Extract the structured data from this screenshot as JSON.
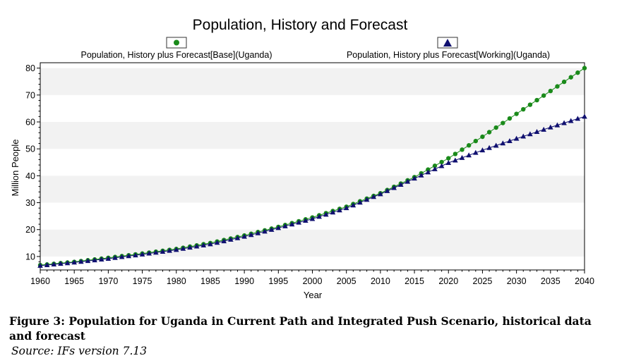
{
  "chart_data": {
    "type": "line",
    "title": "Population, History and Forecast",
    "xlabel": "Year",
    "ylabel": "Million People",
    "xlim": [
      1960,
      2040
    ],
    "ylim": [
      5,
      82
    ],
    "x_ticks": [
      "1960",
      "1965",
      "1970",
      "1975",
      "1980",
      "1985",
      "1990",
      "1995",
      "2000",
      "2005",
      "2010",
      "2015",
      "2020",
      "2025",
      "2030",
      "2035",
      "2040"
    ],
    "y_ticks": [
      "10",
      "20",
      "30",
      "40",
      "50",
      "60",
      "70",
      "80"
    ],
    "legend_position": "top",
    "series": [
      {
        "name": "Population, History plus Forecast[Base](Uganda)",
        "marker": "circle",
        "color": "#1a8a1a",
        "x": [
          1960,
          1965,
          1970,
          1975,
          1980,
          1985,
          1990,
          1995,
          2000,
          2005,
          2010,
          2015,
          2020,
          2025,
          2030,
          2035,
          2040
        ],
        "values": [
          6.8,
          8.0,
          9.5,
          11.1,
          12.8,
          15.0,
          17.8,
          21.0,
          24.5,
          28.5,
          33.5,
          39.5,
          46.5,
          54.5,
          63.0,
          71.5,
          80.0
        ]
      },
      {
        "name": "Population, History plus Forecast[Working](Uganda)",
        "marker": "triangle",
        "color": "#101070",
        "x": [
          1960,
          1965,
          1970,
          1975,
          1980,
          1985,
          1990,
          1995,
          2000,
          2005,
          2010,
          2015,
          2020,
          2025,
          2030,
          2035,
          2040
        ],
        "values": [
          6.6,
          7.8,
          9.2,
          10.8,
          12.5,
          14.6,
          17.4,
          20.6,
          24.0,
          28.0,
          33.2,
          39.0,
          44.8,
          49.5,
          53.8,
          58.0,
          62.0
        ]
      }
    ]
  },
  "caption": "Figure 3: Population for Uganda in Current Path and Integrated Push Scenario, historical data and forecast",
  "source": "Source: IFs version 7.13"
}
